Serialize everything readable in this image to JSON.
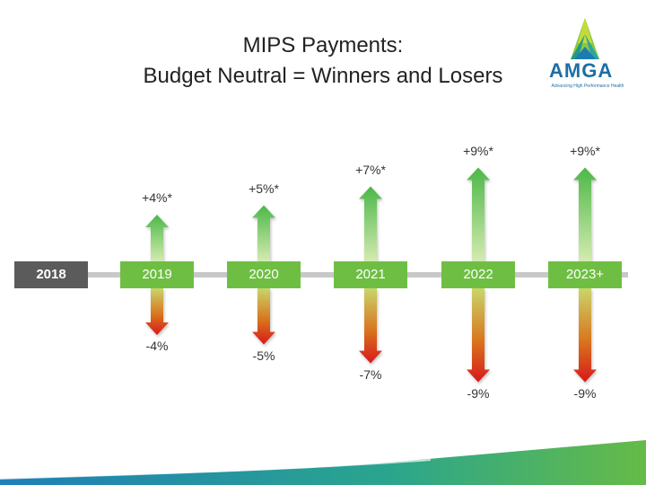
{
  "title": {
    "line1": "MIPS Payments:",
    "line2": "Budget Neutral = Winners and Losers"
  },
  "logo": {
    "name": "AMGA",
    "tagline": "Advancing High Performance Health"
  },
  "colors": {
    "year_first": "#5b5b5b",
    "year_green": "#6fbe44",
    "arrow_up_top": "#4cb848",
    "arrow_up_bottom": "#c6e49a",
    "arrow_down_top": "#c8d86a",
    "arrow_down_bottom": "#d7191c"
  },
  "years": [
    {
      "label": "2018",
      "up": "",
      "down": ""
    },
    {
      "label": "2019",
      "up": "+4%*",
      "down": "-4%"
    },
    {
      "label": "2020",
      "up": "+5%*",
      "down": "-5%"
    },
    {
      "label": "2021",
      "up": "+7%*",
      "down": "-7%"
    },
    {
      "label": "2022",
      "up": "+9%*",
      "down": "-9%"
    },
    {
      "label": "2023+",
      "up": "+9%*",
      "down": "-9%"
    }
  ],
  "adjustments": [
    {
      "year": "2019",
      "positive": 4,
      "negative": -4
    },
    {
      "year": "2020",
      "positive": 5,
      "negative": -5
    },
    {
      "year": "2021",
      "positive": 7,
      "negative": -7
    },
    {
      "year": "2022",
      "positive": 9,
      "negative": -9
    },
    {
      "year": "2023+",
      "positive": 9,
      "negative": -9
    }
  ]
}
